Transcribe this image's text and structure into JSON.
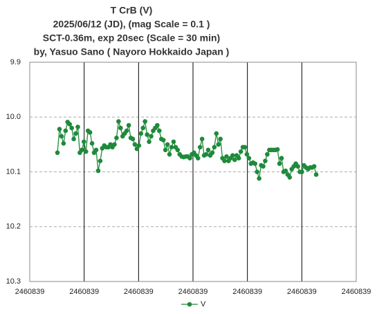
{
  "chart_data": {
    "type": "line",
    "title": [
      "T CrB  (V)",
      "2025/06/12 (JD),   (mag Scale = 0.1 )",
      "SCT-0.36m, exp 20sec (Scale = 30 min)",
      "by, Yasuo Sano ( Nayoro Hokkaido Japan )"
    ],
    "xlim": [
      2460839.625,
      2460839.75
    ],
    "xticks": [
      {
        "value": 2460839.625,
        "label": "2460839"
      },
      {
        "value": 2460839.64583,
        "label": "2460839"
      },
      {
        "value": 2460839.66667,
        "label": "2460839"
      },
      {
        "value": 2460839.6875,
        "label": "2460839"
      },
      {
        "value": 2460839.70833,
        "label": "2460839"
      },
      {
        "value": 2460839.72917,
        "label": "2460839"
      },
      {
        "value": 2460839.75,
        "label": "2460839"
      }
    ],
    "ylim": [
      9.9,
      10.3
    ],
    "yticks": [
      9.9,
      {
        "value": 10,
        "label": "10.0"
      },
      10.1,
      10.2,
      10.3
    ],
    "y_inverted": true,
    "grid": true,
    "legend": "bottom",
    "x": [
      2460839.6356,
      2460839.63638,
      2460839.63716,
      2460839.63794,
      2460839.63872,
      2460839.6395,
      2460839.64028,
      2460839.64106,
      2460839.64184,
      2460839.64262,
      2460839.6434,
      2460839.64418,
      2460839.64496,
      2460839.64574,
      2460839.64652,
      2460839.6473,
      2460839.64808,
      2460839.64886,
      2460839.64964,
      2460839.65042,
      2460839.6512,
      2460839.65198,
      2460839.65276,
      2460839.65354,
      2460839.65432,
      2460839.6551,
      2460839.65588,
      2460839.65666,
      2460839.65744,
      2460839.65822,
      2460839.659,
      2460839.65978,
      2460839.66056,
      2460839.66134,
      2460839.66212,
      2460839.6629,
      2460839.66368,
      2460839.66446,
      2460839.66524,
      2460839.66602,
      2460839.6668,
      2460839.66758,
      2460839.66836,
      2460839.66914,
      2460839.66992,
      2460839.6707,
      2460839.67148,
      2460839.67226,
      2460839.67304,
      2460839.67382,
      2460839.6746,
      2460839.67538,
      2460839.67616,
      2460839.67694,
      2460839.67772,
      2460839.6785,
      2460839.67928,
      2460839.68006,
      2460839.68084,
      2460839.68162,
      2460839.6824,
      2460839.68318,
      2460839.68396,
      2460839.68474,
      2460839.68552,
      2460839.6863,
      2460839.68708,
      2460839.68786,
      2460839.68864,
      2460839.68942,
      2460839.6902,
      2460839.69098,
      2460839.69176,
      2460839.69254,
      2460839.69332,
      2460839.6941,
      2460839.69488,
      2460839.69566,
      2460839.69644,
      2460839.69722,
      2460839.698,
      2460839.69878,
      2460839.69956,
      2460839.70034,
      2460839.70112,
      2460839.7019,
      2460839.70268,
      2460839.70346,
      2460839.70424,
      2460839.70502,
      2460839.7058,
      2460839.70658,
      2460839.70736,
      2460839.70814,
      2460839.70892,
      2460839.7097,
      2460839.71048,
      2460839.71126,
      2460839.71204,
      2460839.71282,
      2460839.7136,
      2460839.71438,
      2460839.71516,
      2460839.71594,
      2460839.71672,
      2460839.7175,
      2460839.71828,
      2460839.71906,
      2460839.71984,
      2460839.72062,
      2460839.7214,
      2460839.72218,
      2460839.72296,
      2460839.72374,
      2460839.72452,
      2460839.7253,
      2460839.72608,
      2460839.72686,
      2460839.72764,
      2460839.72842,
      2460839.7292,
      2460839.72998,
      2460839.73076,
      2460839.73154,
      2460839.73232,
      2460839.7331,
      2460839.73388,
      2460839.73466
    ],
    "series": [
      {
        "name": "V",
        "color": "#1f8a3b",
        "values": [
          10.065,
          10.022,
          10.035,
          10.048,
          10.025,
          10.009,
          10.013,
          10.02,
          10.04,
          10.03,
          10.018,
          10.065,
          10.06,
          10.045,
          10.063,
          10.025,
          10.028,
          10.048,
          10.065,
          10.06,
          10.098,
          10.08,
          10.057,
          10.052,
          10.055,
          10.055,
          10.05,
          10.055,
          10.05,
          10.038,
          10.008,
          10.02,
          10.035,
          10.03,
          10.025,
          10.015,
          10.038,
          10.04,
          10.05,
          10.058,
          10.052,
          10.03,
          10.02,
          10.008,
          10.032,
          10.045,
          10.035,
          10.025,
          10.02,
          10.015,
          10.025,
          10.04,
          10.042,
          10.06,
          10.05,
          10.068,
          10.055,
          10.045,
          10.055,
          10.06,
          10.068,
          10.072,
          10.073,
          10.072,
          10.072,
          10.075,
          10.068,
          10.065,
          10.07,
          10.075,
          10.055,
          10.04,
          10.07,
          10.068,
          10.06,
          10.07,
          10.065,
          10.055,
          10.03,
          10.05,
          10.04,
          10.075,
          10.08,
          10.072,
          10.08,
          10.075,
          10.07,
          10.078,
          10.07,
          10.075,
          10.063,
          10.055,
          10.055,
          10.068,
          10.075,
          10.085,
          10.083,
          10.085,
          10.1,
          10.112,
          10.088,
          10.09,
          10.08,
          10.068,
          10.06,
          10.06,
          10.06,
          10.06,
          10.059,
          10.085,
          10.075,
          10.1,
          10.098,
          10.105,
          10.11,
          10.095,
          10.09,
          10.085,
          10.09,
          10.1,
          10.1,
          10.088,
          10.092,
          10.095,
          10.092,
          10.092,
          10.09,
          10.105
        ]
      }
    ]
  }
}
